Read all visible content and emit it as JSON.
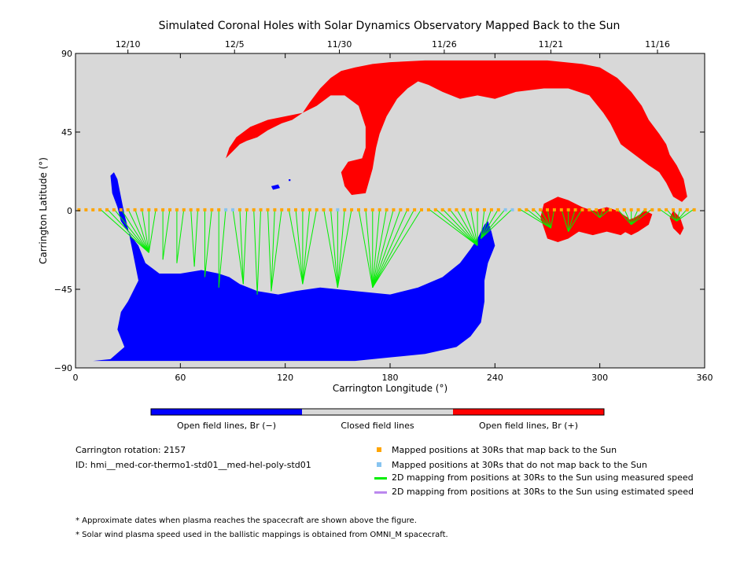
{
  "chart_data": {
    "type": "map",
    "title": "Simulated Coronal Holes with Solar Dynamics Observatory Mapped Back to the Sun",
    "xlabel": "Carrington Longitude (°)",
    "ylabel": "Carrington Latitude (°)",
    "xlim": [
      0,
      360
    ],
    "ylim": [
      -90,
      90
    ],
    "x_ticks": [
      "0",
      "60",
      "120",
      "180",
      "240",
      "300",
      "360"
    ],
    "x_tick_values": [
      0,
      60,
      120,
      180,
      240,
      300,
      360
    ],
    "y_ticks": [
      "−90",
      "−45",
      "0",
      "45",
      "90"
    ],
    "y_tick_values": [
      -90,
      -45,
      0,
      45,
      90
    ],
    "top_dates": [
      {
        "label": "12/10",
        "lon": 30
      },
      {
        "label": "12/5",
        "lon": 91
      },
      {
        "label": "11/30",
        "lon": 151
      },
      {
        "label": "11/26",
        "lon": 211
      },
      {
        "label": "11/21",
        "lon": 272
      },
      {
        "label": "11/16",
        "lon": 333
      }
    ],
    "colors": {
      "closed": "#d8d8d8",
      "open_negative": "#0000ff",
      "open_positive": "#ff0000",
      "mapped_back": "#ffa500",
      "not_mapped": "#88c4f0",
      "measured_speed": "#00ee00",
      "estimated_speed": "#bb88ee"
    },
    "regions": {
      "positive": [
        {
          "name": "north-arc",
          "points": [
            [
              86,
              30
            ],
            [
              90,
              34
            ],
            [
              94,
              38
            ],
            [
              98,
              40
            ],
            [
              104,
              42
            ],
            [
              110,
              46
            ],
            [
              118,
              50
            ],
            [
              124,
              52
            ],
            [
              130,
              56
            ],
            [
              134,
              62
            ],
            [
              140,
              70
            ],
            [
              146,
              76
            ],
            [
              152,
              80
            ],
            [
              160,
              82
            ],
            [
              170,
              84
            ],
            [
              180,
              85
            ],
            [
              200,
              86
            ],
            [
              225,
              86
            ],
            [
              250,
              86
            ],
            [
              270,
              86
            ],
            [
              290,
              84
            ],
            [
              300,
              82
            ],
            [
              310,
              76
            ],
            [
              318,
              68
            ],
            [
              324,
              60
            ],
            [
              328,
              52
            ],
            [
              334,
              44
            ],
            [
              338,
              38
            ],
            [
              340,
              32
            ],
            [
              344,
              26
            ],
            [
              348,
              18
            ],
            [
              350,
              8
            ],
            [
              347,
              5
            ],
            [
              342,
              8
            ],
            [
              338,
              16
            ],
            [
              334,
              22
            ],
            [
              328,
              26
            ],
            [
              320,
              32
            ],
            [
              312,
              38
            ],
            [
              306,
              50
            ],
            [
              302,
              56
            ],
            [
              294,
              66
            ],
            [
              282,
              70
            ],
            [
              268,
              70
            ],
            [
              252,
              68
            ],
            [
              240,
              64
            ],
            [
              230,
              66
            ],
            [
              220,
              64
            ],
            [
              210,
              68
            ],
            [
              202,
              72
            ],
            [
              196,
              74
            ],
            [
              190,
              70
            ],
            [
              184,
              64
            ],
            [
              178,
              54
            ],
            [
              174,
              44
            ],
            [
              172,
              36
            ],
            [
              170,
              24
            ],
            [
              166,
              10
            ],
            [
              158,
              9
            ],
            [
              154,
              14
            ],
            [
              152,
              22
            ],
            [
              156,
              28
            ],
            [
              164,
              30
            ],
            [
              166,
              36
            ],
            [
              166,
              48
            ],
            [
              162,
              60
            ],
            [
              154,
              66
            ],
            [
              146,
              66
            ],
            [
              138,
              60
            ],
            [
              130,
              56
            ],
            [
              120,
              54
            ],
            [
              110,
              52
            ],
            [
              100,
              48
            ],
            [
              92,
              42
            ],
            [
              88,
              36
            ]
          ]
        },
        {
          "name": "eq-patch-1",
          "points": [
            [
              268,
              4
            ],
            [
              272,
              6
            ],
            [
              276,
              8
            ],
            [
              282,
              6
            ],
            [
              286,
              4
            ],
            [
              290,
              2
            ],
            [
              296,
              0
            ],
            [
              304,
              2
            ],
            [
              310,
              0
            ],
            [
              316,
              -4
            ],
            [
              318,
              -10
            ],
            [
              312,
              -14
            ],
            [
              304,
              -12
            ],
            [
              296,
              -14
            ],
            [
              288,
              -12
            ],
            [
              282,
              -16
            ],
            [
              276,
              -18
            ],
            [
              270,
              -16
            ],
            [
              268,
              -10
            ],
            [
              266,
              -4
            ]
          ]
        },
        {
          "name": "eq-patch-2",
          "points": [
            [
              314,
              -6
            ],
            [
              320,
              -4
            ],
            [
              326,
              0
            ],
            [
              330,
              -2
            ],
            [
              328,
              -8
            ],
            [
              322,
              -12
            ],
            [
              318,
              -14
            ],
            [
              314,
              -12
            ]
          ]
        },
        {
          "name": "eq-patch-3",
          "points": [
            [
              342,
              0
            ],
            [
              346,
              -4
            ],
            [
              348,
              -10
            ],
            [
              346,
              -14
            ],
            [
              342,
              -10
            ],
            [
              340,
              -4
            ]
          ]
        }
      ],
      "negative": [
        {
          "name": "south-cap",
          "points": [
            [
              0,
              -86
            ],
            [
              10,
              -86
            ],
            [
              20,
              -85
            ],
            [
              28,
              -78
            ],
            [
              24,
              -68
            ],
            [
              26,
              -58
            ],
            [
              30,
              -52
            ],
            [
              36,
              -40
            ],
            [
              34,
              -30
            ],
            [
              32,
              -20
            ],
            [
              30,
              -10
            ],
            [
              28,
              -2
            ],
            [
              26,
              8
            ],
            [
              24,
              18
            ],
            [
              22,
              22
            ],
            [
              20,
              20
            ],
            [
              21,
              10
            ],
            [
              24,
              2
            ],
            [
              26,
              -6
            ],
            [
              30,
              -12
            ],
            [
              36,
              -20
            ],
            [
              40,
              -30
            ],
            [
              48,
              -36
            ],
            [
              60,
              -36
            ],
            [
              72,
              -34
            ],
            [
              82,
              -36
            ],
            [
              88,
              -38
            ],
            [
              94,
              -42
            ],
            [
              104,
              -46
            ],
            [
              116,
              -48
            ],
            [
              126,
              -46
            ],
            [
              140,
              -44
            ],
            [
              160,
              -46
            ],
            [
              180,
              -48
            ],
            [
              196,
              -44
            ],
            [
              210,
              -38
            ],
            [
              220,
              -30
            ],
            [
              226,
              -22
            ],
            [
              230,
              -16
            ],
            [
              234,
              -8
            ],
            [
              236,
              -6
            ],
            [
              238,
              -12
            ],
            [
              240,
              -20
            ],
            [
              236,
              -30
            ],
            [
              234,
              -40
            ],
            [
              234,
              -52
            ],
            [
              232,
              -64
            ],
            [
              226,
              -72
            ],
            [
              218,
              -78
            ],
            [
              200,
              -82
            ],
            [
              180,
              -84
            ],
            [
              160,
              -86
            ],
            [
              140,
              -86
            ],
            [
              120,
              -86
            ],
            [
              100,
              -86
            ],
            [
              80,
              -86
            ],
            [
              60,
              -86
            ],
            [
              40,
              -86
            ]
          ]
        },
        {
          "name": "small-blob",
          "points": [
            [
              112,
              14
            ],
            [
              116,
              15
            ],
            [
              117,
              13
            ],
            [
              113,
              12
            ]
          ]
        },
        {
          "name": "dot",
          "points": [
            [
              122,
              18
            ],
            [
              123,
              18
            ],
            [
              123,
              17
            ],
            [
              122,
              17
            ]
          ]
        }
      ]
    },
    "mapped_points": {
      "footpoints": [
        {
          "lon": 42,
          "lat": -24
        },
        {
          "lon": 50,
          "lat": -28
        },
        {
          "lon": 58,
          "lat": -30
        },
        {
          "lon": 68,
          "lat": -32
        },
        {
          "lon": 74,
          "lat": -38
        },
        {
          "lon": 82,
          "lat": -44
        },
        {
          "lon": 96,
          "lat": -42
        },
        {
          "lon": 104,
          "lat": -48
        },
        {
          "lon": 112,
          "lat": -46
        },
        {
          "lon": 130,
          "lat": -42
        },
        {
          "lon": 150,
          "lat": -44
        },
        {
          "lon": 170,
          "lat": -44
        },
        {
          "lon": 230,
          "lat": -20
        },
        {
          "lon": 232,
          "lat": -16
        },
        {
          "lon": 272,
          "lat": -10
        },
        {
          "lon": 282,
          "lat": -12
        },
        {
          "lon": 300,
          "lat": -4
        },
        {
          "lon": 318,
          "lat": -8
        },
        {
          "lon": 344,
          "lat": -6
        }
      ]
    }
  },
  "colorbar": {
    "labels": [
      "Open field lines, Br (−)",
      "Closed field lines",
      "Open field lines, Br (+)"
    ]
  },
  "info": {
    "rotation": "Carrington rotation: 2157",
    "id": "ID: hmi__med-cor-thermo1-std01__med-hel-poly-std01"
  },
  "legend": [
    {
      "label": "Mapped positions at 30Rs that map back to the Sun",
      "kind": "square",
      "color": "#ffa500"
    },
    {
      "label": "Mapped positions at 30Rs that do not map back to the Sun",
      "kind": "square",
      "color": "#88c4f0"
    },
    {
      "label": "2D mapping from positions at 30Rs to the Sun using measured speed",
      "kind": "line",
      "color": "#00ee00"
    },
    {
      "label": "2D mapping from positions at 30Rs to the Sun using estimated speed",
      "kind": "line",
      "color": "#bb88ee"
    }
  ],
  "footnotes": [
    "* Approximate dates when plasma reaches the spacecraft are shown above the figure.",
    "* Solar wind plasma speed used in the ballistic mappings is obtained from OMNI_M spacecraft."
  ]
}
